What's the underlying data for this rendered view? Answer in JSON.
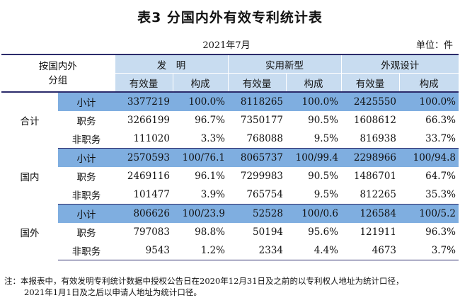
{
  "title": "表3  分国内外有效专利统计表",
  "date": "2021年7月",
  "unit": "单位：件",
  "header": {
    "corner_line1": "按国内外",
    "corner_line2": "分组",
    "groups": [
      "发　明",
      "实用新型",
      "外观设计"
    ],
    "sub": [
      "有效量",
      "构成",
      "有效量",
      "构成",
      "有效量",
      "构成"
    ]
  },
  "rows": [
    {
      "group": "合计",
      "label": "小计",
      "v": [
        "3377219",
        "100.0%",
        "8118265",
        "100.0%",
        "2425550",
        "100.0%"
      ]
    },
    {
      "group": "",
      "label": "职务",
      "v": [
        "3266199",
        "96.7%",
        "7350177",
        "90.5%",
        "1608612",
        "66.3%"
      ]
    },
    {
      "group": "",
      "label": "非职务",
      "v": [
        "111020",
        "3.3%",
        "768088",
        "9.5%",
        "816938",
        "33.7%"
      ]
    },
    {
      "group": "国内",
      "label": "小计",
      "v": [
        "2570593",
        "100/76.1",
        "8065737",
        "100/99.4",
        "2298966",
        "100/94.8"
      ]
    },
    {
      "group": "",
      "label": "职务",
      "v": [
        "2469116",
        "96.1%",
        "7299983",
        "90.5%",
        "1486701",
        "64.7%"
      ]
    },
    {
      "group": "",
      "label": "非职务",
      "v": [
        "101477",
        "3.9%",
        "765754",
        "9.5%",
        "812265",
        "35.3%"
      ]
    },
    {
      "group": "国外",
      "label": "小计",
      "v": [
        "806626",
        "100/23.9",
        "52528",
        "100/0.6",
        "126584",
        "100/5.2"
      ]
    },
    {
      "group": "",
      "label": "职务",
      "v": [
        "797083",
        "98.8%",
        "50194",
        "95.6%",
        "121911",
        "96.3%"
      ]
    },
    {
      "group": "",
      "label": "非职务",
      "v": [
        "9543",
        "1.2%",
        "2334",
        "4.4%",
        "4673",
        "3.7%"
      ]
    }
  ],
  "note": {
    "line1": "注：本报表中，有效发明专利统计数据中授权公告日在2020年12月31日及之前的以专利权人地址为统计口径，",
    "line2": "2021年1月1日及之后以申请人地址为统计口径。"
  }
}
